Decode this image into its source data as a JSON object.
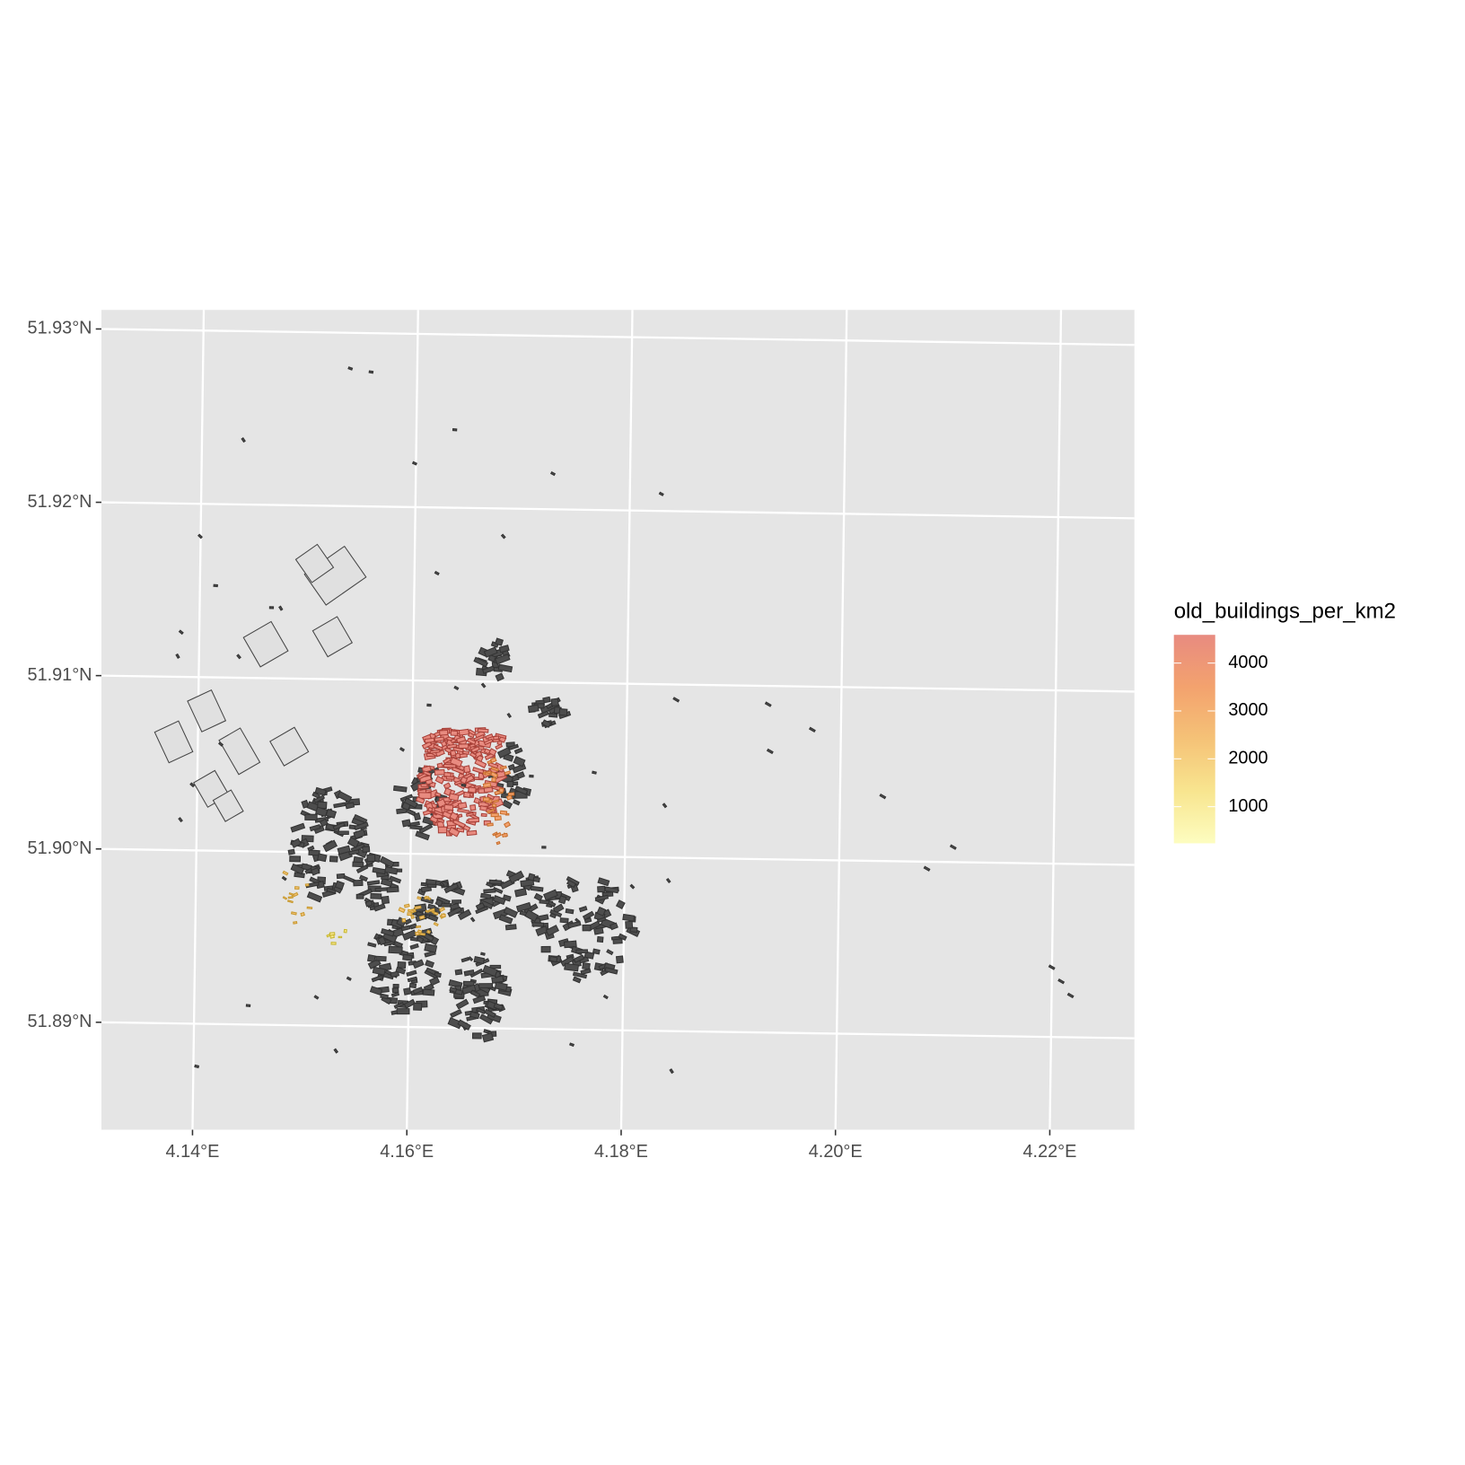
{
  "chart_data": {
    "type": "map",
    "xlim": [
      4.1315,
      4.2279
    ],
    "ylim": [
      51.8838,
      51.9311
    ],
    "xticks": [
      {
        "value": 4.14,
        "label": "4.14°E"
      },
      {
        "value": 4.16,
        "label": "4.16°E"
      },
      {
        "value": 4.18,
        "label": "4.18°E"
      },
      {
        "value": 4.2,
        "label": "4.20°E"
      },
      {
        "value": 4.22,
        "label": "4.22°E"
      }
    ],
    "yticks": [
      {
        "value": 51.89,
        "label": "51.89°N"
      },
      {
        "value": 51.9,
        "label": "51.90°N"
      },
      {
        "value": 51.91,
        "label": "51.91°N"
      },
      {
        "value": 51.92,
        "label": "51.92°N"
      },
      {
        "value": 51.93,
        "label": "51.93°N"
      }
    ],
    "grid": true,
    "colorbar": {
      "title": "old_buildings_per_km2",
      "lim": [
        235,
        4590
      ],
      "ticks": [
        1000,
        2000,
        3000,
        4000
      ],
      "colors": [
        "#fdfdc0",
        "#f8e58f",
        "#f5c277",
        "#f3a26e",
        "#e88b80"
      ]
    }
  }
}
